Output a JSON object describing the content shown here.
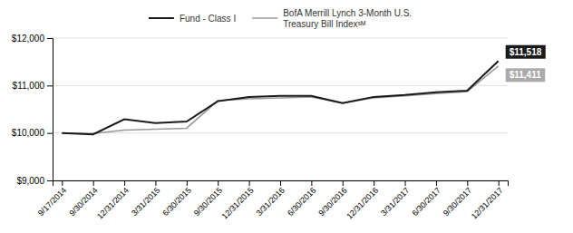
{
  "chart_data": {
    "type": "line",
    "categories": [
      "9/17/2014",
      "9/30/2014",
      "12/31/2014",
      "3/31/2015",
      "6/30/2015",
      "9/30/2015",
      "12/31/2015",
      "3/31/2016",
      "6/30/2016",
      "9/30/2016",
      "12/31/2016",
      "3/31/2017",
      "6/30/2017",
      "9/30/2017",
      "12/31/2017"
    ],
    "series": [
      {
        "name": "Fund - Class I",
        "color": "#1a1a1a",
        "values": [
          10000,
          9970,
          10290,
          10210,
          10240,
          10670,
          10760,
          10780,
          10780,
          10630,
          10760,
          10800,
          10860,
          10890,
          11518
        ]
      },
      {
        "name": "BofA Merrill Lynch 3-Month U.S.\nTreasury Bill Indexˢᴹ",
        "color": "#999999",
        "values": [
          10000,
          9990,
          10060,
          10080,
          10100,
          10680,
          10720,
          10740,
          10760,
          10630,
          10740,
          10780,
          10830,
          10870,
          11411
        ]
      }
    ],
    "annotations": [
      {
        "text": "$11,518",
        "color": "#1a1a1a"
      },
      {
        "text": "$11,411",
        "color": "#aaaaaa"
      }
    ],
    "ylim": [
      9000,
      12000
    ],
    "yticks": [
      {
        "value": 9000,
        "label": "$9,000"
      },
      {
        "value": 10000,
        "label": "$10,000"
      },
      {
        "value": 11000,
        "label": "$11,000"
      },
      {
        "value": 12000,
        "label": "$12,000"
      }
    ],
    "grid": true,
    "legend": "top"
  }
}
